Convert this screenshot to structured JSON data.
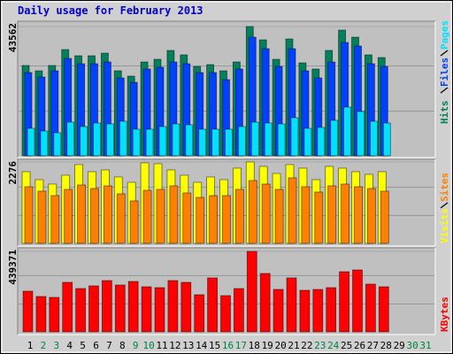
{
  "title": "Daily usage for February 2013",
  "chart_data": [
    {
      "type": "bar",
      "ylim": [
        0,
        43562
      ],
      "yticks": [
        43562
      ],
      "series": [
        {
          "name": "Hits",
          "color": "#00805c",
          "values": [
            30434,
            28643,
            30434,
            35804,
            33716,
            33716,
            34611,
            28643,
            26853,
            31627,
            32522,
            35506,
            34014,
            30135,
            30732,
            28643,
            31627,
            43562,
            39086,
            32522,
            39384,
            31329,
            29240,
            35506,
            42369,
            39981,
            34014,
            33119,
            null,
            null,
            null
          ]
        },
        {
          "name": "Files",
          "color": "#0040ff",
          "values": [
            28047,
            26555,
            28643,
            32821,
            31030,
            31030,
            31627,
            26257,
            24765,
            29240,
            29837,
            31627,
            31030,
            28047,
            28047,
            25660,
            29240,
            39982,
            36103,
            30135,
            36103,
            28643,
            26257,
            31627,
            38191,
            36998,
            31030,
            30135,
            null,
            null,
            null
          ]
        },
        {
          "name": "Pages",
          "color": "#00e0ff",
          "values": [
            9250,
            8354,
            7758,
            11338,
            9846,
            11040,
            10741,
            11636,
            8951,
            8951,
            9846,
            10741,
            10443,
            8951,
            8951,
            8951,
            9846,
            11338,
            11040,
            10741,
            12830,
            9250,
            9548,
            11935,
            16410,
            14919,
            11636,
            11040,
            null,
            null,
            null
          ]
        }
      ]
    },
    {
      "type": "bar",
      "ylim": [
        0,
        2276
      ],
      "yticks": [
        2276
      ],
      "series": [
        {
          "name": "Visits",
          "color": "#ffff00",
          "values": [
            2004,
            1781,
            1658,
            1905,
            2202,
            2004,
            2053,
            1856,
            1707,
            2251,
            2227,
            2053,
            1905,
            1707,
            1856,
            1781,
            2103,
            2276,
            2152,
            1954,
            2202,
            2103,
            1781,
            2152,
            2103,
            2004,
            1930,
            2004,
            null,
            null,
            null
          ]
        },
        {
          "name": "Sites",
          "color": "#ff8000",
          "values": [
            1583,
            1460,
            1336,
            1509,
            1633,
            1534,
            1608,
            1385,
            1188,
            1484,
            1509,
            1608,
            1410,
            1286,
            1336,
            1336,
            1509,
            1757,
            1658,
            1509,
            1831,
            1583,
            1435,
            1608,
            1658,
            1583,
            1534,
            1460,
            null,
            null,
            null
          ]
        }
      ]
    },
    {
      "type": "bar",
      "ylim": [
        0,
        439371
      ],
      "yticks": [
        439371
      ],
      "categories": [
        1,
        2,
        3,
        4,
        5,
        6,
        7,
        8,
        9,
        10,
        11,
        12,
        13,
        14,
        15,
        16,
        17,
        18,
        19,
        20,
        21,
        22,
        23,
        24,
        25,
        26,
        27,
        28,
        29,
        30,
        31
      ],
      "category_colors": [
        "#000000",
        "#008040",
        "#008040",
        "#000000",
        "#000000",
        "#000000",
        "#000000",
        "#000000",
        "#008040",
        "#008040",
        "#000000",
        "#000000",
        "#000000",
        "#000000",
        "#000000",
        "#008040",
        "#008040",
        "#000000",
        "#000000",
        "#000000",
        "#000000",
        "#000000",
        "#008040",
        "#008040",
        "#000000",
        "#000000",
        "#000000",
        "#000000",
        "#000000",
        "#008040",
        "#008040"
      ],
      "series": [
        {
          "name": "KBytes",
          "color": "#ff0000",
          "values": [
            222088,
            193120,
            188292,
            270368,
            236572,
            251056,
            280024,
            255884,
            275196,
            246228,
            241400,
            280024,
            270368,
            202776,
            294508,
            197948,
            236572,
            439371,
            318648,
            231744,
            294508,
            226916,
            231744,
            241400,
            328304,
            337960,
            260712,
            246228,
            null,
            null,
            null
          ]
        }
      ]
    }
  ]
}
